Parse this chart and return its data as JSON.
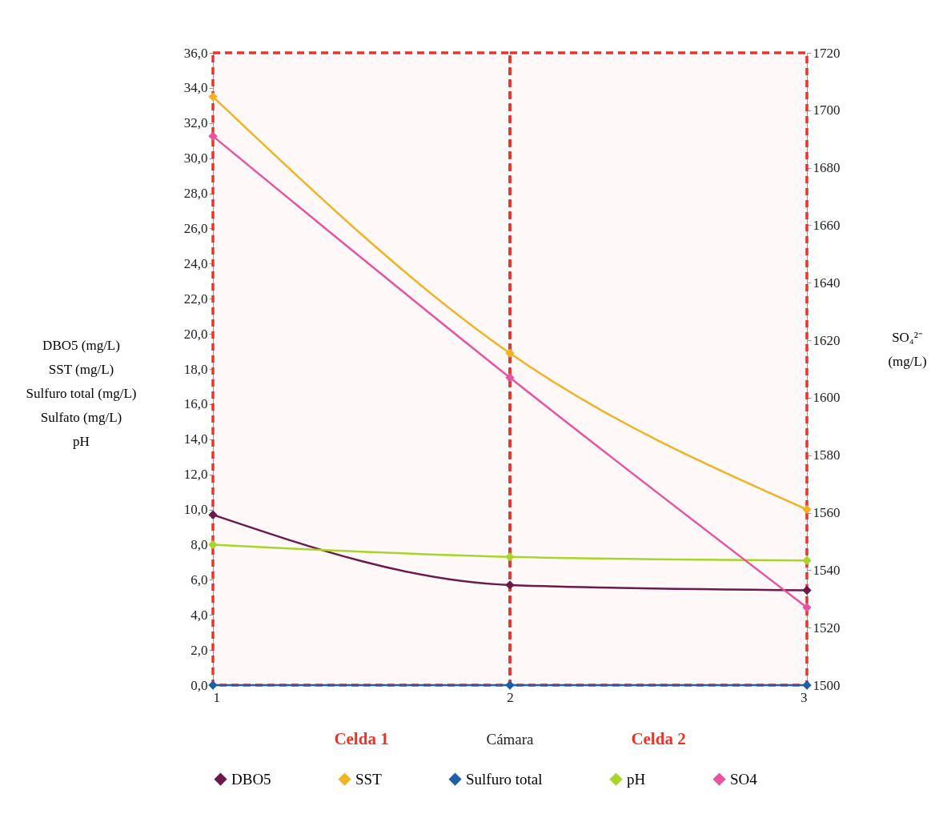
{
  "chart_data": {
    "type": "line",
    "x": [
      1,
      2,
      3
    ],
    "xlim": [
      1,
      3
    ],
    "xticks": [
      1,
      2,
      3
    ],
    "ylabel": "DBO5 (mg/L)\nSST (mg/L)\nSulfuro total (mg/L)\nSulfato (mg/L)\npH",
    "y2label": "SO₄²⁻\n(mg/L)",
    "ylim": [
      0,
      36
    ],
    "yticks": [
      {
        "value": 0,
        "label": "0,0"
      },
      {
        "value": 2,
        "label": "2,0"
      },
      {
        "value": 4,
        "label": "4,0"
      },
      {
        "value": 6,
        "label": "6,0"
      },
      {
        "value": 8,
        "label": "8,0"
      },
      {
        "value": 10,
        "label": "10,0"
      },
      {
        "value": 12,
        "label": "12,0"
      },
      {
        "value": 14,
        "label": "14,0"
      },
      {
        "value": 16,
        "label": "16,0"
      },
      {
        "value": 18,
        "label": "18,0"
      },
      {
        "value": 20,
        "label": "20,0"
      },
      {
        "value": 22,
        "label": "22,0"
      },
      {
        "value": 24,
        "label": "24,0"
      },
      {
        "value": 26,
        "label": "26,0"
      },
      {
        "value": 28,
        "label": "28,0"
      },
      {
        "value": 30,
        "label": "30,0"
      },
      {
        "value": 32,
        "label": "32,0"
      },
      {
        "value": 34,
        "label": "34,0"
      },
      {
        "value": 36,
        "label": "36,0"
      }
    ],
    "y2lim": [
      1500,
      1720
    ],
    "y2ticks": [
      1500,
      1520,
      1540,
      1560,
      1580,
      1600,
      1620,
      1640,
      1660,
      1680,
      1700,
      1720
    ],
    "series": [
      {
        "name": "DBO5",
        "color": "#6b1a4a",
        "values": [
          9.7,
          5.7,
          5.4
        ]
      },
      {
        "name": "SST",
        "color": "#f0b323",
        "values": [
          33.5,
          18.9,
          10.0
        ]
      },
      {
        "name": "Sulfuro total",
        "color": "#1f5fa8",
        "values": [
          0,
          0,
          0
        ]
      },
      {
        "name": "pH",
        "color": "#a8d52a",
        "values": [
          8.0,
          7.3,
          7.1
        ]
      },
      {
        "name": "SO4",
        "color": "#e8529e",
        "axis": "y2",
        "values": [
          1691,
          1607,
          1527
        ]
      }
    ],
    "bands": [
      {
        "axis": "x",
        "from": 1,
        "to": 2,
        "label": "Celda  1",
        "color": "#e8352a"
      },
      {
        "axis": "x",
        "from": 2,
        "to": 3,
        "label": "Celda  2",
        "color": "#e8352a"
      }
    ],
    "annotations": [
      "Cámara"
    ],
    "marker": "diamond",
    "line_style": "solid",
    "legend": "bottom",
    "grid": false
  }
}
